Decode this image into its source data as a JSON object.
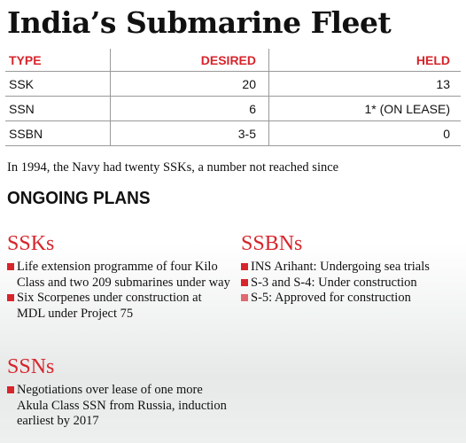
{
  "title": "India’s Submarine Fleet",
  "table": {
    "headers": [
      "TYPE",
      "DESIRED",
      "HELD"
    ],
    "rows": [
      {
        "type": "SSK",
        "desired": "20",
        "held": "13"
      },
      {
        "type": "SSN",
        "desired": "6",
        "held": "1* (ON LEASE)"
      },
      {
        "type": "SSBN",
        "desired": "3-5",
        "held": "0"
      }
    ]
  },
  "note": "In 1994, the Navy had twenty SSKs, a number not reached since",
  "ongoing_plans": "ONGOING PLANS",
  "sections": {
    "ssks": {
      "heading": "SSKs",
      "items": [
        "Life extension programme of four Kilo Class and two 209 submarines under way",
        "Six Scorpenes under construction at MDL under Project 75"
      ]
    },
    "ssns": {
      "heading": "SSNs",
      "items": [
        "Negotiations over lease of one more Akula Class SSN from Russia, induction earliest by 2017"
      ]
    },
    "ssbns": {
      "heading": "SSBNs",
      "items": [
        "INS Arihant: Undergoing sea trials",
        "S-3 and S-4: Under construction",
        "S-5: Approved for construction"
      ]
    }
  },
  "colors": {
    "accent": "#d7252c",
    "bullet_light": "#e06a6f"
  }
}
